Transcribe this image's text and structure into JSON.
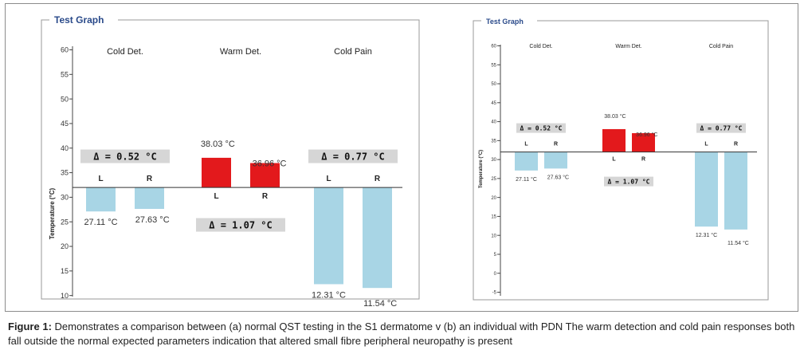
{
  "chart_data": [
    {
      "type": "bar",
      "title": "Test Graph",
      "xlabel": "",
      "ylabel": "Temperature (°C)",
      "ylim": [
        8,
        63
      ],
      "yticks": [
        10,
        15,
        20,
        25,
        30,
        35,
        40,
        45,
        50,
        55,
        60
      ],
      "baseline": 32,
      "grid": false,
      "categories": [
        "Cold Det.",
        "Warm Det.",
        "Cold Pain"
      ],
      "series": [
        {
          "name": "L",
          "values": [
            27.11,
            38.03,
            12.31
          ],
          "value_labels": [
            "27.11 °C",
            "38.03 °C",
            "12.31 °C"
          ]
        },
        {
          "name": "R",
          "values": [
            27.63,
            36.96,
            11.54
          ],
          "value_labels": [
            "27.63 °C",
            "36.96 °C",
            "11.54 °C"
          ]
        }
      ],
      "bar_colors": [
        "#a8d5e5",
        "#e3191c",
        "#a8d5e5"
      ],
      "deltas": [
        "Δ = 0.52 °C",
        "Δ = 1.07 °C",
        "Δ = 0.77 °C"
      ]
    },
    {
      "type": "bar",
      "title": "Test Graph",
      "xlabel": "",
      "ylabel": "Temperature (°C)",
      "ylim": [
        -7,
        62
      ],
      "yticks": [
        -5,
        0,
        5,
        10,
        15,
        20,
        25,
        30,
        35,
        40,
        45,
        50,
        55,
        60
      ],
      "baseline": 32,
      "grid": false,
      "categories": [
        "Cold Det.",
        "Warm Det.",
        "Cold Pain"
      ],
      "series": [
        {
          "name": "L",
          "values": [
            27.11,
            38.03,
            12.31
          ],
          "value_labels": [
            "27.11 °C",
            "38.03 °C",
            "12.31 °C"
          ]
        },
        {
          "name": "R",
          "values": [
            27.63,
            36.96,
            11.54
          ],
          "value_labels": [
            "27.63 °C",
            "36.96 °C",
            "11.54 °C"
          ]
        }
      ],
      "bar_colors": [
        "#a8d5e5",
        "#e3191c",
        "#a8d5e5"
      ],
      "deltas": [
        "Δ = 0.52 °C",
        "Δ = 1.07 °C",
        "Δ = 0.77 °C"
      ]
    }
  ],
  "caption": {
    "label": "Figure 1:",
    "text": "Demonstrates a comparison between (a) normal QST testing in the S1 dermatome v (b) an individual with PDN The warm detection and cold pain responses both fall outside the normal expected parameters indication that altered small fibre peripheral neuropathy is present"
  }
}
